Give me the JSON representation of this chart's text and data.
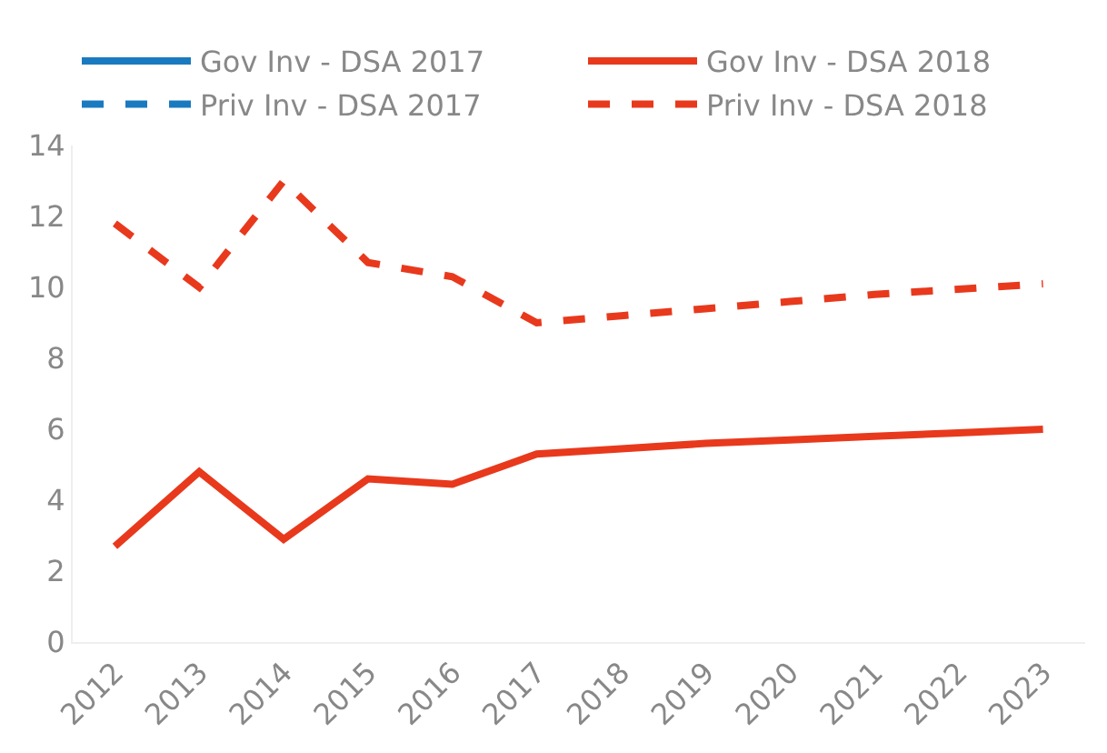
{
  "chart_data": {
    "type": "line",
    "categories": [
      "2012",
      "2013",
      "2014",
      "2015",
      "2016",
      "2017",
      "2018",
      "2019",
      "2020",
      "2021",
      "2022",
      "2023"
    ],
    "series": [
      {
        "name": "Gov Inv - DSA 2017",
        "color": "#1a7abf",
        "line_style": "solid",
        "values": [
          null,
          null,
          null,
          null,
          null,
          null,
          null,
          null,
          null,
          null,
          null,
          null
        ]
      },
      {
        "name": "Gov Inv - DSA 2018",
        "color": "#e8391d",
        "line_style": "solid",
        "values": [
          2.7,
          4.8,
          2.9,
          4.6,
          4.45,
          5.3,
          5.45,
          5.6,
          5.7,
          5.8,
          5.9,
          6.0
        ]
      },
      {
        "name": "Priv Inv - DSA 2017",
        "color": "#1a7abf",
        "line_style": "dashed",
        "values": [
          null,
          null,
          null,
          null,
          null,
          null,
          null,
          null,
          null,
          null,
          null,
          null
        ]
      },
      {
        "name": "Priv Inv - DSA 2018",
        "color": "#e8391d",
        "line_style": "dashed",
        "values": [
          11.8,
          10.0,
          13.0,
          10.7,
          10.3,
          9.0,
          9.2,
          9.4,
          9.6,
          9.8,
          9.95,
          10.1
        ]
      }
    ],
    "ylim": [
      0,
      14
    ],
    "yticks": [
      0,
      2,
      4,
      6,
      8,
      10,
      12,
      14
    ],
    "legend": "top",
    "marker": "none"
  }
}
